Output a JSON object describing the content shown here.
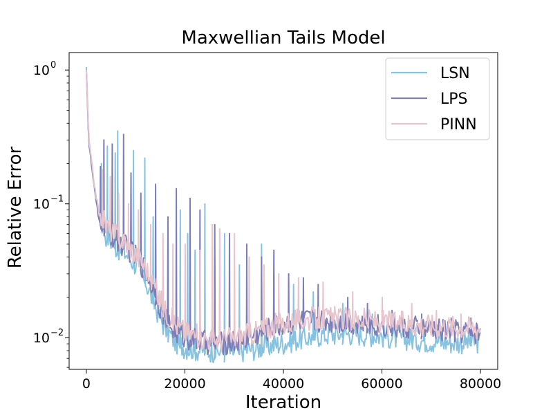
{
  "chart_data": {
    "type": "line",
    "title": "Maxwellian Tails Model",
    "xlabel": "Iteration",
    "ylabel": "Relative Error",
    "xlim": [
      -3500,
      83500
    ],
    "ylim": [
      0.0058,
      1.35
    ],
    "yscale": "log",
    "x_ticks": [
      0,
      20000,
      40000,
      60000,
      80000
    ],
    "x_tick_labels": [
      "0",
      "20000",
      "40000",
      "60000",
      "80000"
    ],
    "y_ticks": [
      0.01,
      0.1,
      1
    ],
    "y_tick_labels": [
      "10",
      "10",
      "10"
    ],
    "y_tick_exponents": [
      "−2",
      "−1",
      "0"
    ],
    "grid": false,
    "legend_position": "top-right",
    "series": [
      {
        "name": "LSN",
        "color": "#87c3e0",
        "x": [
          0,
          500,
          1000,
          1500,
          2500,
          4000,
          6000,
          8000,
          10000,
          12000,
          14000,
          16000,
          18000,
          20000,
          22000,
          24000,
          26000,
          28000,
          30000,
          32000,
          34000,
          36000,
          38000,
          40000,
          42000,
          44000,
          46000,
          48000,
          50000,
          52000,
          54000,
          56000,
          58000,
          60000,
          62000,
          64000,
          66000,
          68000,
          70000,
          72000,
          74000,
          76000,
          78000,
          80000
        ],
        "y": [
          1.0,
          0.28,
          0.2,
          0.14,
          0.08,
          0.055,
          0.045,
          0.04,
          0.033,
          0.025,
          0.016,
          0.011,
          0.0088,
          0.008,
          0.0077,
          0.0076,
          0.0075,
          0.0074,
          0.0074,
          0.0076,
          0.0078,
          0.008,
          0.0083,
          0.0086,
          0.009,
          0.0093,
          0.0096,
          0.0099,
          0.01,
          0.01,
          0.0101,
          0.01,
          0.0099,
          0.0097,
          0.0095,
          0.0093,
          0.0092,
          0.009,
          0.0089,
          0.0088,
          0.0087,
          0.0087,
          0.0087,
          0.0088
        ],
        "spikes": [
          [
            3000,
            0.2
          ],
          [
            4200,
            0.27
          ],
          [
            5800,
            0.24
          ],
          [
            6300,
            0.35
          ],
          [
            9500,
            0.25
          ],
          [
            11800,
            0.22
          ],
          [
            13500,
            0.08
          ],
          [
            16500,
            0.06
          ],
          [
            19000,
            0.09
          ],
          [
            20500,
            0.06
          ],
          [
            22000,
            0.045
          ],
          [
            24000,
            0.1
          ],
          [
            26000,
            0.04
          ],
          [
            28000,
            0.06
          ],
          [
            31000,
            0.035
          ],
          [
            35500,
            0.05
          ],
          [
            38000,
            0.03
          ],
          [
            42000,
            0.025
          ],
          [
            46000,
            0.022
          ],
          [
            52000,
            0.018
          ],
          [
            58000,
            0.015
          ],
          [
            66000,
            0.013
          ],
          [
            72000,
            0.012
          ],
          [
            78000,
            0.012
          ]
        ]
      },
      {
        "name": "LPS",
        "color": "#7d7db8",
        "x": [
          0,
          500,
          1000,
          1500,
          2500,
          4000,
          6000,
          8000,
          10000,
          12000,
          14000,
          16000,
          18000,
          20000,
          22000,
          24000,
          26000,
          28000,
          30000,
          32000,
          34000,
          36000,
          38000,
          40000,
          42000,
          44000,
          46000,
          48000,
          50000,
          52000,
          54000,
          56000,
          58000,
          60000,
          62000,
          64000,
          66000,
          68000,
          70000,
          72000,
          74000,
          76000,
          78000,
          80000
        ],
        "y": [
          1.0,
          0.28,
          0.2,
          0.14,
          0.075,
          0.06,
          0.05,
          0.045,
          0.038,
          0.03,
          0.02,
          0.013,
          0.0105,
          0.0095,
          0.009,
          0.0087,
          0.0086,
          0.0086,
          0.0088,
          0.0092,
          0.0098,
          0.0105,
          0.0112,
          0.0118,
          0.0122,
          0.0125,
          0.0127,
          0.0127,
          0.0126,
          0.0124,
          0.0122,
          0.012,
          0.0118,
          0.0116,
          0.0114,
          0.0112,
          0.0111,
          0.011,
          0.0108,
          0.0107,
          0.0106,
          0.0105,
          0.0104,
          0.0103
        ],
        "spikes": [
          [
            2800,
            0.19
          ],
          [
            3500,
            0.3
          ],
          [
            5200,
            0.28
          ],
          [
            7500,
            0.33
          ],
          [
            9000,
            0.17
          ],
          [
            11000,
            0.12
          ],
          [
            14000,
            0.14
          ],
          [
            16500,
            0.08
          ],
          [
            18200,
            0.13
          ],
          [
            21000,
            0.11
          ],
          [
            23000,
            0.09
          ],
          [
            26000,
            0.07
          ],
          [
            29000,
            0.06
          ],
          [
            32500,
            0.05
          ],
          [
            35500,
            0.04
          ],
          [
            38000,
            0.045
          ],
          [
            41000,
            0.03
          ],
          [
            44000,
            0.028
          ],
          [
            47000,
            0.025
          ],
          [
            53000,
            0.02
          ],
          [
            57000,
            0.018
          ],
          [
            62000,
            0.016
          ],
          [
            68000,
            0.015
          ],
          [
            74000,
            0.014
          ],
          [
            78000,
            0.014
          ]
        ]
      },
      {
        "name": "PINN",
        "color": "#e8c4cc",
        "x": [
          0,
          500,
          1000,
          1500,
          2500,
          4000,
          6000,
          8000,
          10000,
          12000,
          14000,
          16000,
          18000,
          20000,
          22000,
          24000,
          26000,
          28000,
          30000,
          32000,
          34000,
          36000,
          38000,
          40000,
          42000,
          44000,
          46000,
          48000,
          50000,
          52000,
          54000,
          56000,
          58000,
          60000,
          62000,
          64000,
          66000,
          68000,
          70000,
          72000,
          74000,
          76000,
          78000,
          80000
        ],
        "y": [
          1.0,
          0.3,
          0.21,
          0.15,
          0.085,
          0.065,
          0.055,
          0.048,
          0.04,
          0.032,
          0.022,
          0.015,
          0.012,
          0.0105,
          0.0098,
          0.0094,
          0.0092,
          0.0092,
          0.0094,
          0.0098,
          0.0104,
          0.011,
          0.0116,
          0.0122,
          0.0126,
          0.0129,
          0.013,
          0.0131,
          0.0131,
          0.013,
          0.0129,
          0.0128,
          0.0126,
          0.0125,
          0.0123,
          0.0121,
          0.012,
          0.0118,
          0.0117,
          0.0116,
          0.0115,
          0.0114,
          0.0113,
          0.0112
        ],
        "spikes": [
          [
            3200,
            0.18
          ],
          [
            4800,
            0.16
          ],
          [
            6500,
            0.12
          ],
          [
            8500,
            0.1
          ],
          [
            10500,
            0.09
          ],
          [
            13000,
            0.07
          ],
          [
            15500,
            0.06
          ],
          [
            17500,
            0.05
          ],
          [
            20000,
            0.05
          ],
          [
            23000,
            0.045
          ],
          [
            25500,
            0.07
          ],
          [
            27000,
            0.065
          ],
          [
            30000,
            0.06
          ],
          [
            33000,
            0.04
          ],
          [
            36000,
            0.035
          ],
          [
            39000,
            0.03
          ],
          [
            43000,
            0.028
          ],
          [
            48000,
            0.026
          ],
          [
            54000,
            0.022
          ],
          [
            60000,
            0.02
          ],
          [
            66000,
            0.018
          ],
          [
            71000,
            0.016
          ],
          [
            76000,
            0.015
          ]
        ]
      }
    ]
  }
}
